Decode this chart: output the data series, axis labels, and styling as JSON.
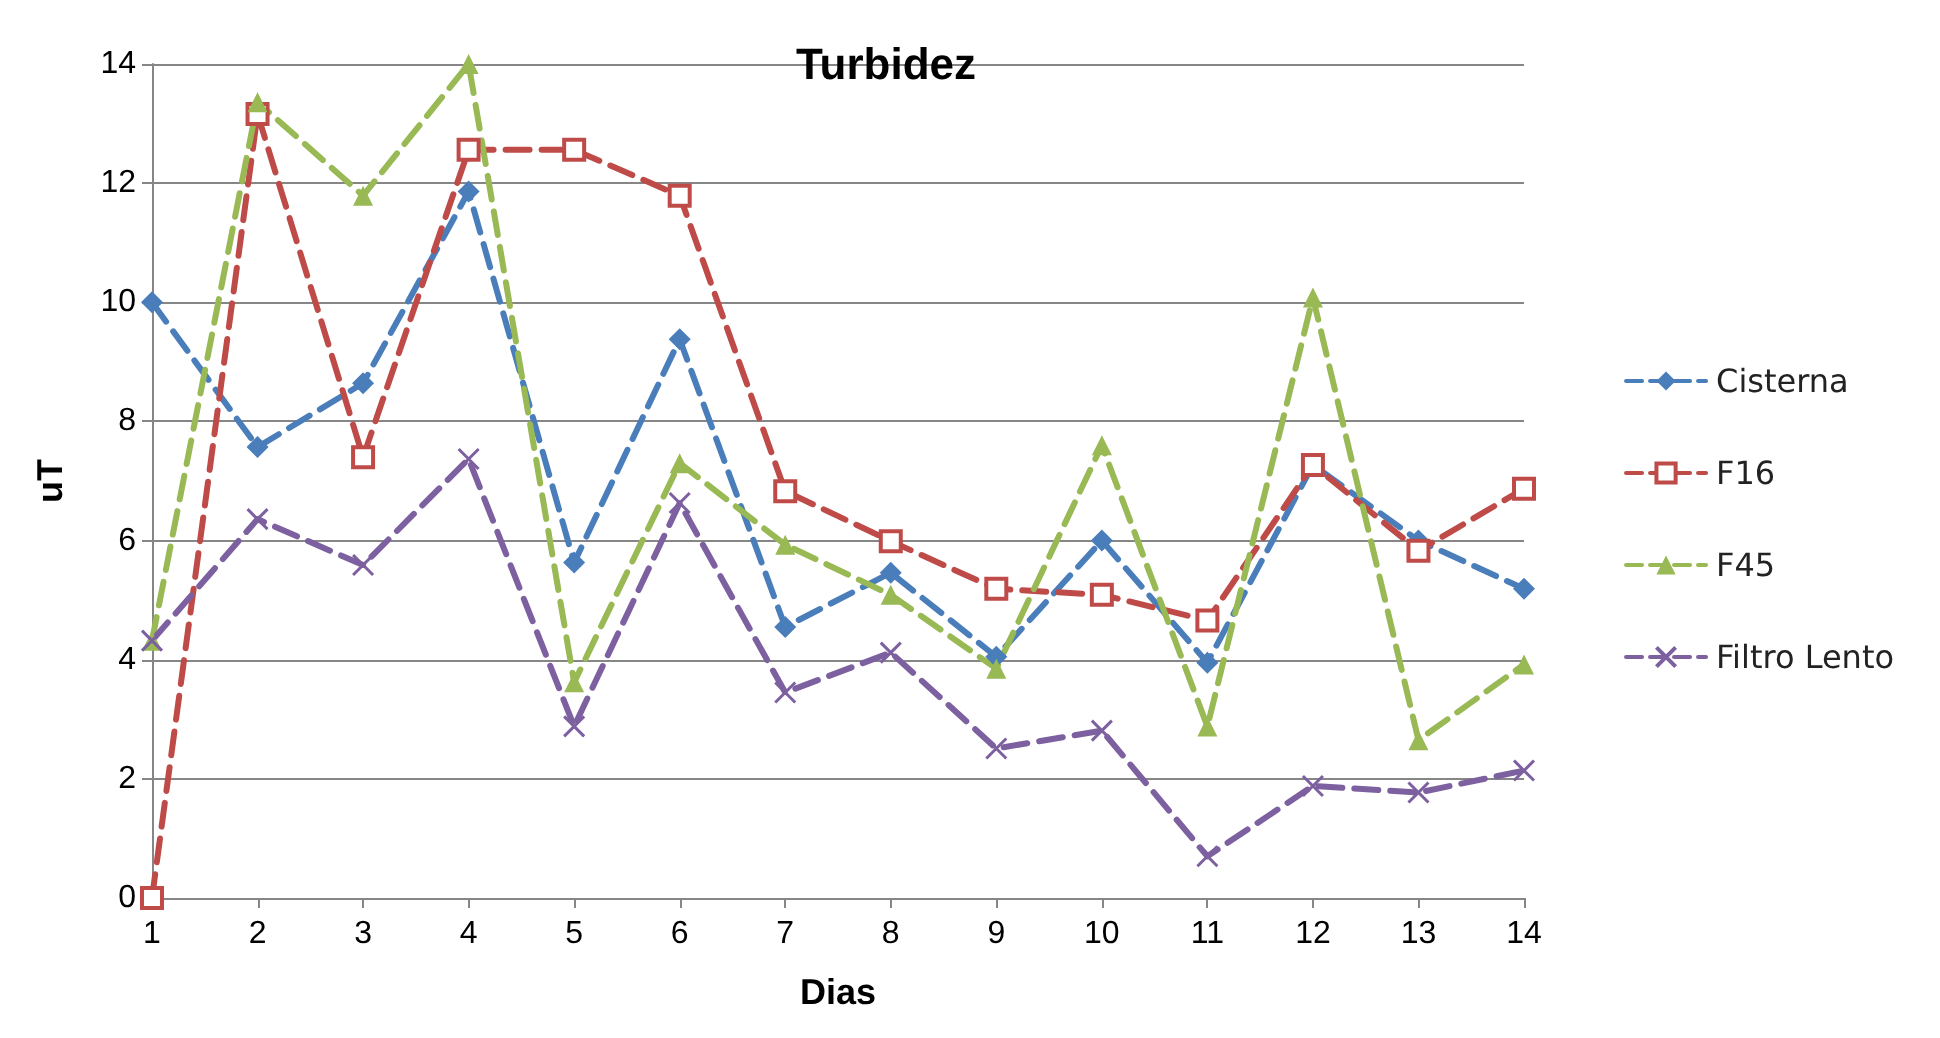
{
  "chart_data": {
    "type": "line",
    "title": "Turbidez",
    "xlabel": "Dias",
    "ylabel": "uT",
    "categories": [
      "1",
      "2",
      "3",
      "4",
      "5",
      "6",
      "7",
      "8",
      "9",
      "10",
      "11",
      "12",
      "13",
      "14"
    ],
    "ylim": [
      0,
      14
    ],
    "yticks": [
      0,
      2,
      4,
      6,
      8,
      10,
      12,
      14
    ],
    "grid": "y",
    "legend": "right",
    "line_style": "dashed",
    "series": [
      {
        "name": "Cisterna",
        "color": "#4a7ebb",
        "marker": "diamond",
        "values": [
          10,
          7.57,
          8.64,
          11.86,
          5.63,
          9.38,
          4.55,
          5.46,
          4.05,
          6.0,
          3.95,
          7.27,
          6.0,
          5.19
        ]
      },
      {
        "name": "F16",
        "color": "#be4b48",
        "marker": "square",
        "values": [
          0,
          13.16,
          7.4,
          12.56,
          12.56,
          11.79,
          6.83,
          5.99,
          5.19,
          5.09,
          4.66,
          7.27,
          5.83,
          6.87
        ]
      },
      {
        "name": "F45",
        "color": "#98b954",
        "marker": "triangle",
        "values": [
          4.32,
          13.36,
          11.79,
          14.0,
          3.62,
          7.3,
          5.93,
          5.09,
          3.85,
          7.6,
          2.88,
          10.08,
          2.65,
          3.92
        ]
      },
      {
        "name": "Filtro Lento",
        "color": "#7d60a0",
        "marker": "cross",
        "values": [
          4.32,
          6.36,
          5.59,
          7.37,
          2.88,
          6.63,
          3.45,
          4.12,
          2.51,
          2.81,
          0.7,
          1.88,
          1.77,
          2.14
        ]
      }
    ]
  }
}
